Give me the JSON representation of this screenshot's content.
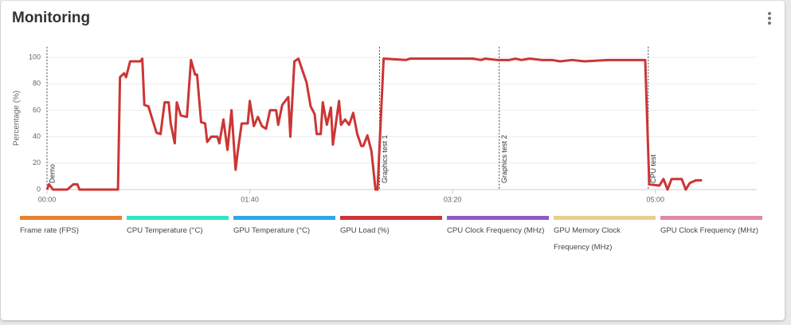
{
  "header": {
    "title": "Monitoring"
  },
  "chart_data": {
    "type": "line",
    "ylabel": "Percentage (%)",
    "xlim": [
      0,
      350
    ],
    "xticks": [
      {
        "value": 0,
        "label": "00:00"
      },
      {
        "value": 100,
        "label": "01:40"
      },
      {
        "value": 200,
        "label": "03:20"
      },
      {
        "value": 300,
        "label": "05:00"
      }
    ],
    "ylim": [
      0,
      108
    ],
    "yticks": [
      0,
      20,
      40,
      60,
      80,
      100
    ],
    "grid": true,
    "annotations": [
      {
        "label": "Demo",
        "x": 0
      },
      {
        "label": "Graphics test 1",
        "x": 164
      },
      {
        "label": "Graphics test 2",
        "x": 223
      },
      {
        "label": "CPU test",
        "x": 296.5
      }
    ],
    "series": [
      {
        "name": "Frame rate (FPS)",
        "color": "#e8822e",
        "x": [],
        "values": []
      },
      {
        "name": "CPU Temperature (°C)",
        "color": "#2ee8c4",
        "x": [],
        "values": []
      },
      {
        "name": "GPU Temperature (°C)",
        "color": "#2ea8e8",
        "x": [],
        "values": []
      },
      {
        "name": "GPU Load (%)",
        "color": "#cc3535",
        "x": [
          0,
          1,
          3,
          10,
          13,
          15,
          16,
          35,
          36,
          38,
          39,
          41,
          46,
          47,
          48,
          50,
          52,
          54,
          56,
          58,
          60,
          61,
          63,
          64,
          66,
          69,
          71,
          73,
          74,
          76,
          78,
          79,
          81,
          84,
          85,
          87,
          89,
          91,
          93,
          94,
          96,
          99,
          100,
          102,
          104,
          106,
          108,
          110,
          113,
          114,
          116,
          119,
          120,
          122,
          124,
          126,
          128,
          130,
          132,
          133,
          135,
          136,
          138,
          140,
          141,
          144,
          145,
          147,
          149,
          151,
          153,
          155,
          156,
          158,
          160,
          162,
          163,
          166,
          177,
          179,
          210,
          214,
          216,
          222,
          228,
          231,
          234,
          238,
          244,
          249,
          253,
          259,
          265,
          277,
          279,
          295,
          297,
          302,
          304,
          306,
          308,
          313,
          315,
          317,
          320,
          323
        ],
        "values": [
          0,
          4,
          0,
          0,
          4,
          4,
          0,
          0,
          85,
          88,
          85,
          97,
          97,
          99,
          64,
          63,
          53,
          43,
          42,
          66,
          66,
          50,
          35,
          66,
          56,
          55,
          98,
          87,
          87,
          51,
          50,
          36,
          40,
          40,
          35,
          53,
          30,
          60,
          15,
          28,
          50,
          50,
          67,
          48,
          55,
          48,
          46,
          60,
          60,
          49,
          64,
          70,
          40,
          97,
          99,
          90,
          81,
          63,
          57,
          42,
          42,
          66,
          49,
          62,
          34,
          67,
          49,
          53,
          49,
          58,
          42,
          33,
          33,
          41,
          29,
          0,
          0,
          99,
          98,
          99,
          99,
          98,
          99,
          98,
          98,
          99,
          98,
          99,
          98,
          98,
          97,
          98,
          97,
          98,
          98,
          98,
          4,
          3,
          8,
          0,
          8,
          8,
          0,
          5,
          7,
          7
        ]
      },
      {
        "name": "CPU Clock Frequency (MHz)",
        "color": "#8e5cc4",
        "x": [],
        "values": []
      },
      {
        "name": "GPU Memory Clock Frequency (MHz)",
        "color": "#e8cf8e",
        "x": [],
        "values": []
      },
      {
        "name": "GPU Clock Frequency (MHz)",
        "color": "#e08aa6",
        "x": [],
        "values": []
      }
    ]
  }
}
